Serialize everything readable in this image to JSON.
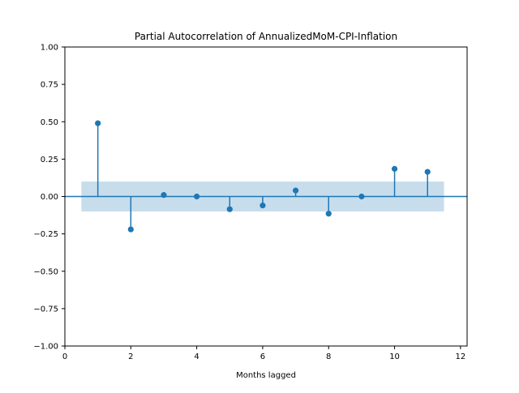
{
  "chart_data": {
    "type": "stem",
    "title": "Partial Autocorrelation of AnnualizedMoM-CPI-Inflation",
    "xlabel": "Months lagged",
    "ylabel": "",
    "xlim": [
      0,
      12.2
    ],
    "ylim": [
      -1.0,
      1.0
    ],
    "x_ticks": [
      0,
      2,
      4,
      6,
      8,
      10,
      12
    ],
    "x_tick_labels": [
      "0",
      "2",
      "4",
      "6",
      "8",
      "10",
      "12"
    ],
    "y_ticks": [
      1.0,
      0.75,
      0.5,
      0.25,
      0.0,
      -0.25,
      -0.5,
      -0.75,
      -1.0
    ],
    "y_tick_labels": [
      "1.00",
      "0.75",
      "0.50",
      "0.25",
      "0.00",
      "−0.25",
      "−0.50",
      "−0.75",
      "−1.00"
    ],
    "grid": false,
    "series": [
      {
        "x": [
          1,
          2,
          3,
          4,
          5,
          6,
          7,
          8,
          9,
          10,
          11
        ],
        "values": [
          0.49,
          -0.22,
          0.01,
          0.0,
          -0.085,
          -0.06,
          0.04,
          -0.115,
          0.0,
          0.185,
          0.165
        ]
      }
    ],
    "confidence_band": {
      "x_range": [
        0.5,
        11.5
      ],
      "lower": -0.1,
      "upper": 0.1
    },
    "colors": {
      "marker": "#1f77b4",
      "band": "#1f77b4",
      "zero_line": "#1f77b4"
    }
  }
}
